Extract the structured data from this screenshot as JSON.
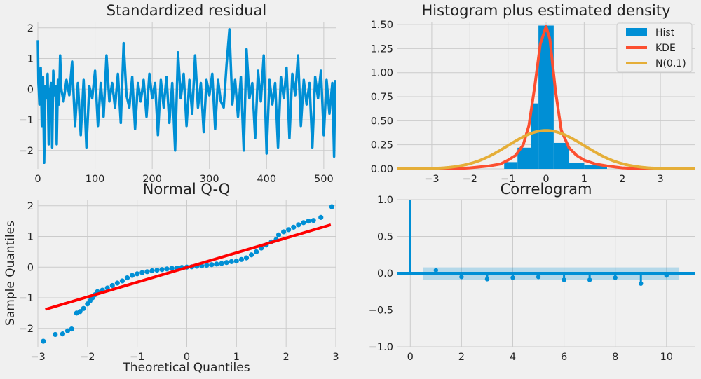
{
  "figure": {
    "background": "#f0f0f0",
    "grid_color": "#cbcbcb",
    "colors": {
      "blue": "#008fd5",
      "orange": "#fc4f30",
      "yellow": "#e5ae38",
      "red": "#ff0000"
    }
  },
  "chart_data": [
    {
      "id": "resid",
      "type": "line",
      "title": "Standardized residual",
      "xlabel": "",
      "ylabel": "",
      "xlim": [
        0,
        521
      ],
      "ylim": [
        -2.6,
        2.2
      ],
      "xticks": [
        0,
        100,
        200,
        300,
        400,
        500
      ],
      "yticks": [
        -2,
        -1,
        0,
        1,
        2
      ],
      "grid": true,
      "series": [
        {
          "x": [
            0,
            1,
            3,
            5,
            7,
            9,
            11,
            13,
            15,
            17,
            19,
            21,
            23,
            25,
            27,
            29,
            31,
            33,
            35,
            37,
            39,
            41,
            45,
            50,
            55,
            60,
            65,
            70,
            75,
            80,
            85,
            90,
            95,
            100,
            105,
            110,
            115,
            120,
            125,
            130,
            135,
            140,
            145,
            150,
            155,
            160,
            165,
            170,
            175,
            180,
            185,
            190,
            195,
            200,
            205,
            210,
            215,
            220,
            225,
            230,
            235,
            240,
            245,
            250,
            255,
            260,
            265,
            270,
            275,
            280,
            285,
            290,
            295,
            300,
            305,
            310,
            315,
            320,
            325,
            330,
            335,
            340,
            345,
            350,
            355,
            360,
            365,
            370,
            375,
            380,
            385,
            390,
            395,
            400,
            405,
            410,
            415,
            420,
            425,
            430,
            435,
            440,
            445,
            450,
            455,
            460,
            465,
            470,
            475,
            480,
            485,
            490,
            495,
            500,
            505,
            510,
            515,
            518,
            520
          ],
          "y": [
            1.6,
            0.2,
            -0.5,
            0.7,
            -1.2,
            0.4,
            -2.4,
            0.1,
            -0.3,
            0.5,
            -1.8,
            -0.1,
            0.2,
            -1.9,
            0.6,
            -0.2,
            0.1,
            -1.8,
            0.3,
            -0.5,
            1.1,
            0.0,
            -0.4,
            0.3,
            -0.2,
            0.9,
            -1.2,
            0.2,
            -1.5,
            0.3,
            -1.9,
            0.1,
            -0.3,
            0.6,
            -1.2,
            0.2,
            -0.9,
            1.1,
            -0.4,
            0.2,
            -0.6,
            0.5,
            -1.1,
            1.5,
            -0.2,
            -0.6,
            0.4,
            -1.3,
            0.2,
            -0.4,
            0.3,
            -0.9,
            0.5,
            -0.3,
            0.2,
            -1.5,
            0.3,
            -0.6,
            0.4,
            -1.1,
            0.2,
            -2.0,
            1.2,
            -0.3,
            0.5,
            -1.2,
            0.3,
            -0.8,
            1.1,
            -0.6,
            0.2,
            -1.4,
            0.3,
            -0.2,
            0.5,
            -1.3,
            0.3,
            -0.4,
            -0.6,
            0.8,
            1.95,
            -0.5,
            0.3,
            -0.9,
            0.4,
            -2.0,
            1.3,
            -0.3,
            0.2,
            -1.6,
            0.6,
            -0.4,
            1.1,
            -2.1,
            0.3,
            -0.5,
            0.2,
            -1.9,
            0.4,
            -0.3,
            0.7,
            -1.6,
            0.5,
            -0.2,
            1.1,
            -1.2,
            0.3,
            -0.5,
            0.2,
            -1.9,
            0.4,
            -0.3,
            0.6,
            -1.5,
            0.3,
            -0.8,
            0.2,
            -2.2,
            0.3
          ]
        }
      ]
    },
    {
      "id": "hist",
      "type": "bar",
      "title": "Histogram plus estimated density",
      "xlabel": "",
      "ylabel": "",
      "xlim": [
        -3.9,
        3.9
      ],
      "ylim": [
        0,
        1.53
      ],
      "xticks": [
        -3,
        -2,
        -1,
        0,
        1,
        2,
        3
      ],
      "yticks": [
        0.0,
        0.25,
        0.5,
        0.75,
        1.0,
        1.25,
        1.5
      ],
      "grid": true,
      "legend_position": "top-right",
      "legend": [
        "Hist",
        "KDE",
        "N(0,1)"
      ],
      "hist_bins": [
        {
          "x0": -1.1,
          "x1": -0.75,
          "h": 0.07
        },
        {
          "x0": -0.75,
          "x1": -0.4,
          "h": 0.22
        },
        {
          "x0": -0.4,
          "x1": -0.2,
          "h": 0.68
        },
        {
          "x0": -0.2,
          "x1": 0.2,
          "h": 1.49
        },
        {
          "x0": 0.2,
          "x1": 0.6,
          "h": 0.27
        },
        {
          "x0": 0.6,
          "x1": 1.0,
          "h": 0.06
        },
        {
          "x0": 1.0,
          "x1": 1.6,
          "h": 0.04
        }
      ],
      "kde": {
        "x": [
          -3.9,
          -2.5,
          -2.0,
          -1.5,
          -1.2,
          -1.0,
          -0.8,
          -0.6,
          -0.45,
          -0.3,
          -0.15,
          0.0,
          0.1,
          0.25,
          0.4,
          0.6,
          0.8,
          1.0,
          1.3,
          1.6,
          2.0,
          2.5,
          3.9
        ],
        "y": [
          0.0,
          0.0,
          0.01,
          0.03,
          0.05,
          0.09,
          0.14,
          0.25,
          0.45,
          0.85,
          1.3,
          1.48,
          1.35,
          0.8,
          0.4,
          0.22,
          0.14,
          0.09,
          0.05,
          0.03,
          0.01,
          0.0,
          0.0
        ]
      },
      "normal": {
        "mean": 0,
        "sd": 1
      }
    },
    {
      "id": "qq",
      "type": "scatter",
      "title": "Normal Q-Q",
      "xlabel": "Theoretical Quantiles",
      "ylabel": "Sample Quantiles",
      "xlim": [
        -3,
        3
      ],
      "ylim": [
        -2.6,
        2.2
      ],
      "xticks": [
        -3,
        -2,
        -1,
        0,
        1,
        2,
        3
      ],
      "yticks": [
        -2,
        -1,
        0,
        1,
        2
      ],
      "grid": true,
      "points": [
        [
          -2.89,
          -2.42
        ],
        [
          -2.65,
          -2.2
        ],
        [
          -2.5,
          -2.18
        ],
        [
          -2.4,
          -2.08
        ],
        [
          -2.32,
          -2.02
        ],
        [
          -2.22,
          -1.5
        ],
        [
          -2.15,
          -1.45
        ],
        [
          -2.08,
          -1.35
        ],
        [
          -2.0,
          -1.2
        ],
        [
          -1.95,
          -1.1
        ],
        [
          -1.9,
          -1.0
        ],
        [
          -1.85,
          -0.9
        ],
        [
          -1.8,
          -0.8
        ],
        [
          -1.7,
          -0.75
        ],
        [
          -1.6,
          -0.68
        ],
        [
          -1.5,
          -0.6
        ],
        [
          -1.4,
          -0.52
        ],
        [
          -1.3,
          -0.45
        ],
        [
          -1.2,
          -0.35
        ],
        [
          -1.1,
          -0.27
        ],
        [
          -1.0,
          -0.22
        ],
        [
          -0.9,
          -0.18
        ],
        [
          -0.8,
          -0.15
        ],
        [
          -0.7,
          -0.12
        ],
        [
          -0.6,
          -0.1
        ],
        [
          -0.5,
          -0.08
        ],
        [
          -0.4,
          -0.06
        ],
        [
          -0.3,
          -0.04
        ],
        [
          -0.2,
          -0.03
        ],
        [
          -0.1,
          -0.01
        ],
        [
          0.0,
          0.0
        ],
        [
          0.1,
          0.01
        ],
        [
          0.2,
          0.03
        ],
        [
          0.3,
          0.04
        ],
        [
          0.4,
          0.06
        ],
        [
          0.5,
          0.08
        ],
        [
          0.6,
          0.1
        ],
        [
          0.7,
          0.12
        ],
        [
          0.8,
          0.15
        ],
        [
          0.9,
          0.18
        ],
        [
          1.0,
          0.2
        ],
        [
          1.1,
          0.25
        ],
        [
          1.2,
          0.3
        ],
        [
          1.3,
          0.4
        ],
        [
          1.4,
          0.5
        ],
        [
          1.5,
          0.62
        ],
        [
          1.6,
          0.72
        ],
        [
          1.7,
          0.82
        ],
        [
          1.8,
          0.9
        ],
        [
          1.85,
          1.05
        ],
        [
          1.95,
          1.15
        ],
        [
          2.05,
          1.22
        ],
        [
          2.15,
          1.3
        ],
        [
          2.25,
          1.38
        ],
        [
          2.35,
          1.45
        ],
        [
          2.45,
          1.5
        ],
        [
          2.55,
          1.52
        ],
        [
          2.7,
          1.62
        ],
        [
          2.92,
          1.97
        ]
      ],
      "fit_line": {
        "x": [
          -2.85,
          2.9
        ],
        "y": [
          -1.38,
          1.38
        ]
      }
    },
    {
      "id": "acf",
      "type": "bar",
      "title": "Correlogram",
      "xlabel": "",
      "ylabel": "",
      "xlim": [
        -0.5,
        11.1
      ],
      "ylim": [
        -1.0,
        1.0
      ],
      "xticks": [
        0,
        2,
        4,
        6,
        8,
        10
      ],
      "yticks": [
        -1.0,
        -0.5,
        0.0,
        0.5,
        1.0
      ],
      "grid": true,
      "lags": [
        0,
        1,
        2,
        3,
        4,
        5,
        6,
        7,
        8,
        9,
        10
      ],
      "values": [
        1.0,
        0.04,
        -0.05,
        -0.08,
        -0.06,
        -0.05,
        -0.09,
        -0.09,
        -0.06,
        -0.14,
        -0.03
      ],
      "conf_band": [
        -0.09,
        0.08
      ],
      "conf_x": [
        0.5,
        10.5
      ]
    }
  ]
}
